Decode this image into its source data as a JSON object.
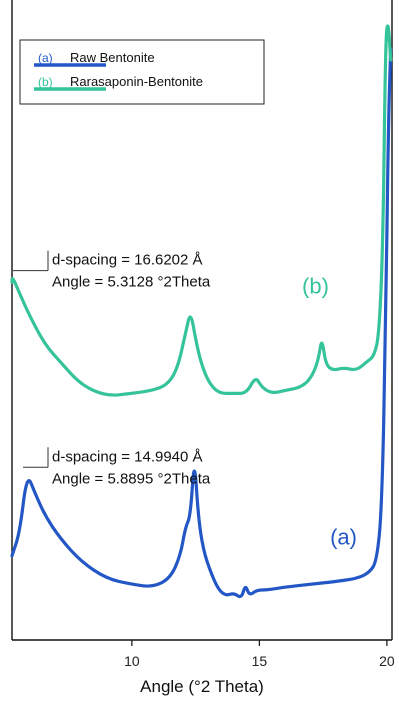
{
  "chart_data": {
    "type": "line",
    "title": "",
    "xlabel": "Angle (°2 Theta)",
    "ylabel": "",
    "xlim": [
      5.3,
      20.2
    ],
    "xticks": [
      10,
      15,
      20
    ],
    "xtick_labels": [
      "10",
      "15",
      "20"
    ],
    "grid": false,
    "legend_position": "top-left",
    "series": [
      {
        "id": "a",
        "tag": "(a)",
        "name": "Raw Bentonite",
        "color": "#2357c6",
        "x": [
          5.3,
          5.6,
          5.89,
          6.2,
          6.6,
          7.2,
          8.0,
          9.0,
          10.0,
          10.8,
          11.5,
          11.9,
          12.1,
          12.3,
          12.45,
          12.6,
          12.8,
          13.1,
          13.4,
          13.7,
          14.0,
          14.3,
          14.45,
          14.6,
          14.9,
          15.3,
          16.0,
          17.0,
          18.0,
          18.8,
          19.3,
          19.6,
          19.8,
          19.95,
          20.05,
          20.15
        ],
        "y": [
          0.06,
          0.1,
          0.205,
          0.17,
          0.13,
          0.09,
          0.05,
          0.02,
          0.01,
          0.005,
          0.02,
          0.06,
          0.11,
          0.13,
          0.235,
          0.13,
          0.07,
          0.03,
          0.0,
          -0.01,
          -0.005,
          -0.015,
          0.01,
          -0.01,
          0.0,
          0.0,
          0.005,
          0.01,
          0.015,
          0.02,
          0.03,
          0.05,
          0.14,
          0.45,
          0.8,
          0.95
        ]
      },
      {
        "id": "b",
        "tag": "(b)",
        "name": "Rarasaponin-Bentonite",
        "color": "#35c39a",
        "x": [
          5.3,
          5.31,
          5.6,
          6.0,
          6.6,
          7.2,
          8.0,
          9.0,
          10.0,
          10.8,
          11.4,
          11.8,
          12.1,
          12.3,
          12.5,
          12.7,
          13.0,
          13.4,
          14.0,
          14.5,
          14.85,
          15.1,
          15.5,
          16.0,
          16.6,
          17.0,
          17.3,
          17.45,
          17.6,
          17.9,
          18.3,
          18.8,
          19.2,
          19.5,
          19.7,
          19.85,
          19.95,
          20.05,
          20.15
        ],
        "y": [
          0.54,
          0.55,
          0.52,
          0.48,
          0.43,
          0.4,
          0.36,
          0.34,
          0.345,
          0.35,
          0.36,
          0.39,
          0.45,
          0.49,
          0.44,
          0.4,
          0.365,
          0.345,
          0.345,
          0.345,
          0.375,
          0.355,
          0.345,
          0.35,
          0.355,
          0.37,
          0.4,
          0.445,
          0.395,
          0.385,
          0.39,
          0.385,
          0.4,
          0.41,
          0.45,
          0.62,
          0.97,
          1.0,
          0.93
        ]
      }
    ],
    "annotations": [
      {
        "series": "b",
        "line1": "d-spacing = 16.6202 Å",
        "line2": "Angle = 5.3128 °2Theta",
        "x": 5.3128
      },
      {
        "series": "a",
        "line1": "d-spacing = 14.9940 Å",
        "line2": "Angle = 5.8895 °2Theta",
        "x": 5.8895
      }
    ],
    "series_labels": [
      "(b)",
      "(a)"
    ]
  }
}
